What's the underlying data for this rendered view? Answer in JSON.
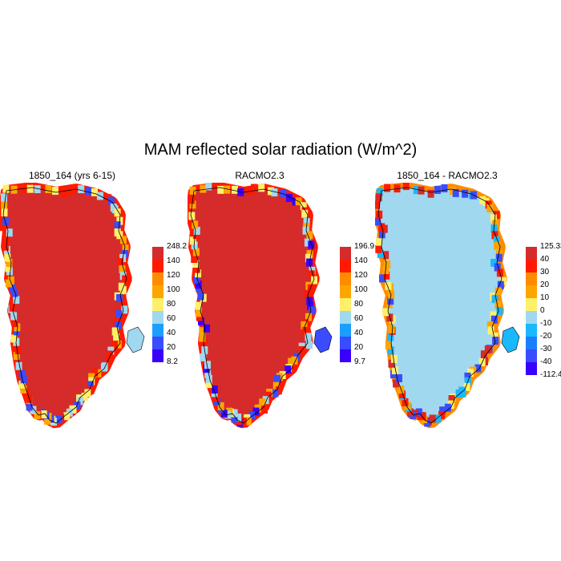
{
  "title": "MAM reflected solar radiation (W/m^2)",
  "panels": [
    {
      "title": "1850_164 (yrs 6-15)",
      "interior_color": "#d62b2b",
      "outer_color": "#ff1a00",
      "edge_colors": [
        "#ff1a00",
        "#ffa500",
        "#fff06a",
        "#a0d8f0",
        "#3a4cff"
      ],
      "colorbar": {
        "labels": [
          "248.2",
          "140",
          "120",
          "100",
          "80",
          "60",
          "40",
          "20",
          "8.2"
        ],
        "colors": [
          "#d62b2b",
          "#ff1a00",
          "#ff8c00",
          "#ffa500",
          "#fff06a",
          "#a0d8f0",
          "#1a9fff",
          "#3a4cff",
          "#3a00ff"
        ]
      }
    },
    {
      "title": "RACMO2.3",
      "interior_color": "#d62b2b",
      "outer_color": "#ff1a00",
      "edge_colors": [
        "#ffa500",
        "#fff06a",
        "#ff1a00",
        "#3a4cff",
        "#3a00ff",
        "#a0d8f0"
      ],
      "colorbar": {
        "labels": [
          "196.9",
          "140",
          "120",
          "100",
          "80",
          "60",
          "40",
          "20",
          "9.7"
        ],
        "colors": [
          "#d62b2b",
          "#ff1a00",
          "#ff8c00",
          "#ffa500",
          "#fff06a",
          "#a0d8f0",
          "#1a9fff",
          "#3a4cff",
          "#3a00ff"
        ]
      }
    },
    {
      "title": "1850_164 - RACMO2.3",
      "interior_color": "#a0d8f0",
      "outer_color": "#ff8c00",
      "edge_colors": [
        "#d62b2b",
        "#ffa500",
        "#fff06a",
        "#1ab8ff",
        "#3a4cff",
        "#ff1a00"
      ],
      "colorbar": {
        "labels": [
          "125.33",
          "40",
          "30",
          "20",
          "10",
          "0",
          "-10",
          "-20",
          "-30",
          "-40",
          "-112.4"
        ],
        "colors": [
          "#d62b2b",
          "#ff1a00",
          "#ff8c00",
          "#ffa500",
          "#fff06a",
          "#a0d8f0",
          "#1ab8ff",
          "#1a7fff",
          "#3a4cff",
          "#3a00ff"
        ]
      }
    }
  ]
}
